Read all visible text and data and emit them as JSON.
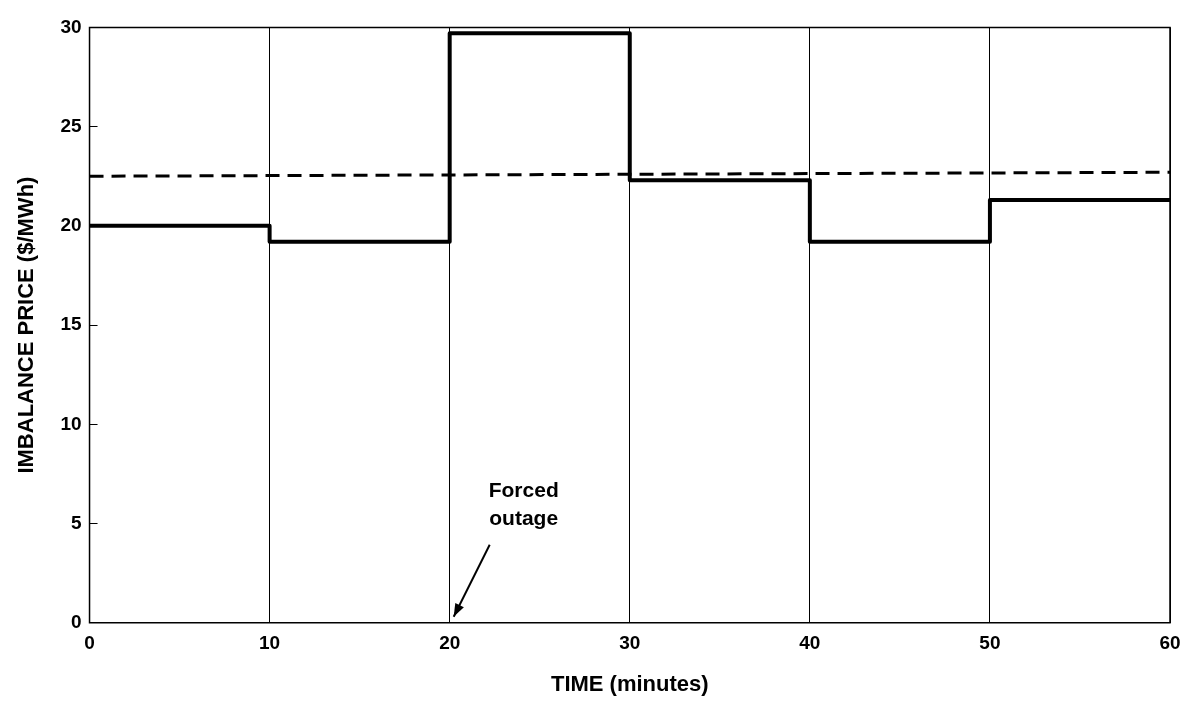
{
  "chart_data": {
    "type": "step",
    "xlabel": "TIME (minutes)",
    "ylabel": "IMBALANCE PRICE ($/MWh)",
    "xlim": [
      0,
      60
    ],
    "xticks": [
      0,
      10,
      20,
      30,
      40,
      50,
      60
    ],
    "ylim": [
      0,
      30
    ],
    "yticks": [
      0,
      5,
      10,
      15,
      20,
      25,
      30
    ],
    "grid": "x",
    "legend": false,
    "series": [
      {
        "color": "#000000",
        "x": [
          0,
          10,
          20,
          30,
          40,
          50,
          60
        ],
        "values": [
          20,
          19.2,
          29.7,
          22.3,
          19.2,
          21.3,
          21.3
        ]
      },
      {
        "type": "line",
        "color": "#000000",
        "line_style": "dashed",
        "x": [
          0,
          60
        ],
        "values": [
          22.5,
          22.7
        ]
      }
    ],
    "annotations": [
      "Forced outage"
    ]
  }
}
